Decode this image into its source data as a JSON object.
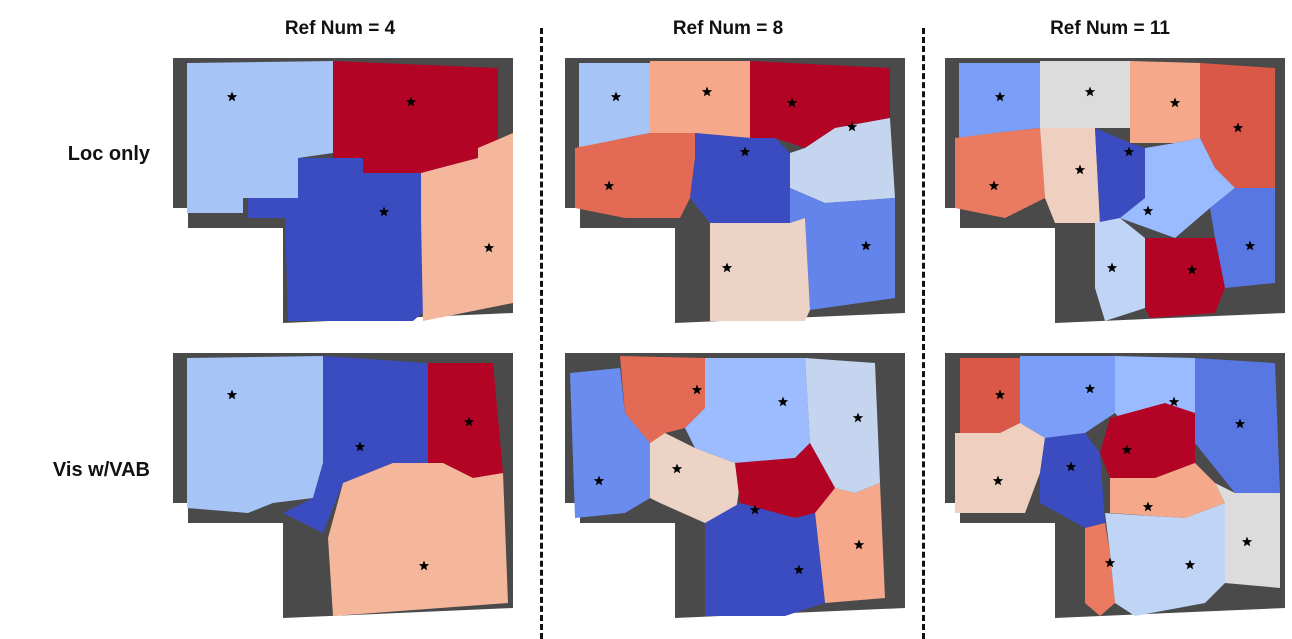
{
  "columns": [
    {
      "title": "Ref Num = 4"
    },
    {
      "title": "Ref Num = 8"
    },
    {
      "title": "Ref Num = 11"
    }
  ],
  "rows": [
    {
      "title": "Loc only"
    },
    {
      "title": "Vis w/VAB"
    }
  ],
  "floorplan_color": "#4a4a4a",
  "star_color": "#000000",
  "panels": [
    {
      "row": 0,
      "col": 0,
      "region_colors": [
        "#a6c4f5",
        "#b40426",
        "#3b4cc0",
        "#f4b79b"
      ]
    },
    {
      "row": 0,
      "col": 1,
      "region_colors": [
        "#a6c4f5",
        "#f5a98a",
        "#b40426",
        "#e36b55",
        "#3b4cc0",
        "#c5d5ef",
        "#6384eb",
        "#ecd3c5"
      ]
    },
    {
      "row": 0,
      "col": 2,
      "region_colors": [
        "#7b9ff9",
        "#dddcdc",
        "#f5a98a",
        "#d95847",
        "#ea7b60",
        "#efcfbf",
        "#3b4cc0",
        "#9abbff",
        "#5977e3",
        "#c0d4f5",
        "#b40426"
      ]
    },
    {
      "row": 1,
      "col": 0,
      "region_colors": [
        "#a6c4f5",
        "#3b4cc0",
        "#b40426",
        "#f4b79b"
      ]
    },
    {
      "row": 1,
      "col": 1,
      "region_colors": [
        "#6a8cef",
        "#e36b55",
        "#9dbcff",
        "#c5d5ef",
        "#ecd3c5",
        "#b40426",
        "#f5a98a",
        "#3b4cc0"
      ]
    },
    {
      "row": 1,
      "col": 2,
      "region_colors": [
        "#d95847",
        "#7b9ff9",
        "#9abbff",
        "#5977e3",
        "#efcfbf",
        "#3b4cc0",
        "#b40426",
        "#f5a98a",
        "#dddcdc",
        "#ea7b60",
        "#c0d4f5"
      ]
    }
  ]
}
